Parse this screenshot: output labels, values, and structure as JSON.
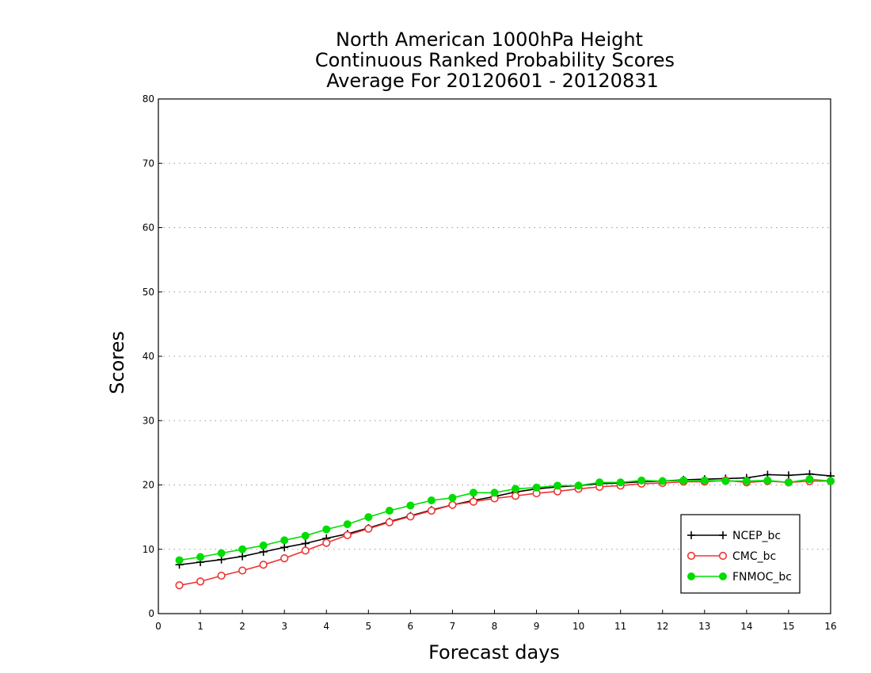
{
  "chart_data": {
    "type": "line",
    "title": [
      "North American 1000hPa Height",
      "Continuous Ranked Probability Scores",
      "Average For 20120601 - 20120831"
    ],
    "xlabel": "Forecast days",
    "ylabel": "Scores",
    "xlim": [
      0,
      16
    ],
    "ylim": [
      0,
      80
    ],
    "xticks": [
      0,
      1,
      2,
      3,
      4,
      5,
      6,
      7,
      8,
      9,
      10,
      11,
      12,
      13,
      14,
      15,
      16
    ],
    "yticks": [
      0,
      10,
      20,
      30,
      40,
      50,
      60,
      70,
      80
    ],
    "grid": "horizontal dotted",
    "legend_position": "bottom-right",
    "x": [
      0.5,
      1,
      1.5,
      2,
      2.5,
      3,
      3.5,
      4,
      4.5,
      5,
      5.5,
      6,
      6.5,
      7,
      7.5,
      8,
      8.5,
      9,
      9.5,
      10,
      10.5,
      11,
      11.5,
      12,
      12.5,
      13,
      13.5,
      14,
      14.5,
      15,
      15.5,
      16
    ],
    "series": [
      {
        "name": "NCEP_bc",
        "color": "#000000",
        "marker": "plus",
        "values": [
          7.6,
          8.0,
          8.4,
          8.9,
          9.6,
          10.3,
          10.9,
          11.7,
          12.4,
          13.3,
          14.3,
          15.2,
          16.1,
          16.9,
          17.6,
          18.2,
          18.9,
          19.4,
          19.7,
          19.9,
          20.2,
          20.3,
          20.5,
          20.6,
          20.8,
          20.9,
          21.0,
          21.1,
          21.6,
          21.5,
          21.7,
          21.4
        ]
      },
      {
        "name": "CMC_bc",
        "color": "#ee3333",
        "marker": "open-circle",
        "values": [
          4.4,
          5.0,
          5.9,
          6.7,
          7.6,
          8.6,
          9.8,
          11.0,
          12.2,
          13.2,
          14.2,
          15.1,
          16.0,
          16.9,
          17.4,
          17.9,
          18.3,
          18.7,
          19.0,
          19.4,
          19.7,
          19.9,
          20.2,
          20.3,
          20.5,
          20.5,
          20.7,
          20.4,
          20.6,
          20.4,
          20.6,
          20.6
        ]
      },
      {
        "name": "FNMOC_bc",
        "color": "#00dd00",
        "marker": "filled-circle",
        "values": [
          8.3,
          8.8,
          9.4,
          10.0,
          10.6,
          11.4,
          12.1,
          13.1,
          13.9,
          15.0,
          16.0,
          16.8,
          17.6,
          18.0,
          18.8,
          18.8,
          19.4,
          19.6,
          19.9,
          19.9,
          20.4,
          20.4,
          20.7,
          20.6,
          20.7,
          20.7,
          20.6,
          20.6,
          20.7,
          20.4,
          20.9,
          20.6
        ]
      }
    ]
  }
}
